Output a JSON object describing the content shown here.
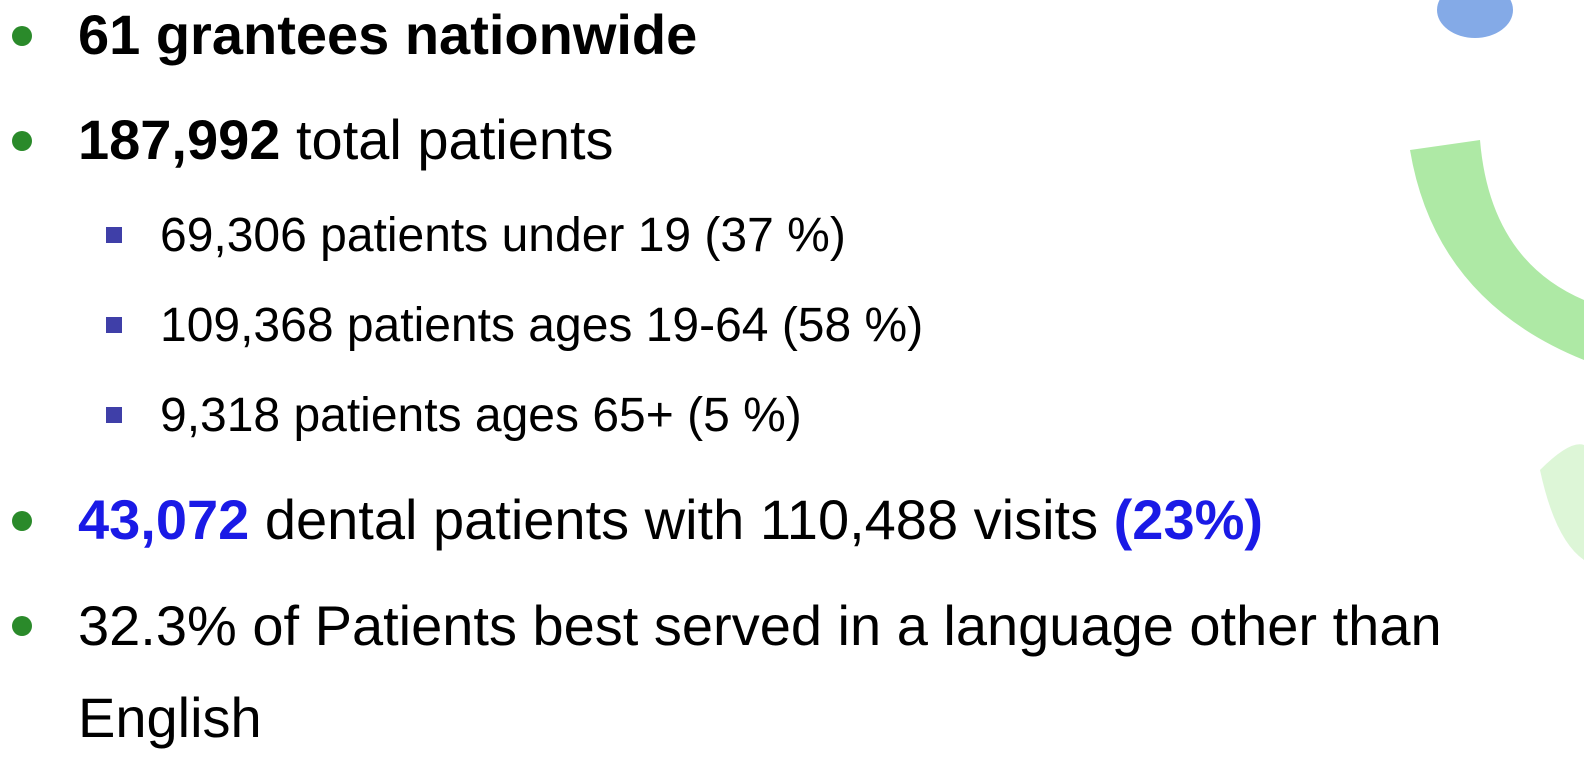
{
  "items": [
    {
      "bold": "61 grantees nationwide"
    },
    {
      "bold": "187,992",
      "text": "total patients",
      "subitems": [
        "69,306 patients under 19 (37 %)",
        "109,368 patients ages 19-64 (58 %)",
        "9,318 patients ages 65+ (5 %)"
      ]
    },
    {
      "highlight": "43,072",
      "text": "dental patients with 110,488 visits",
      "highlight_end": "(23%)"
    },
    {
      "text": "32.3% of Patients best served in a language other than English"
    }
  ]
}
